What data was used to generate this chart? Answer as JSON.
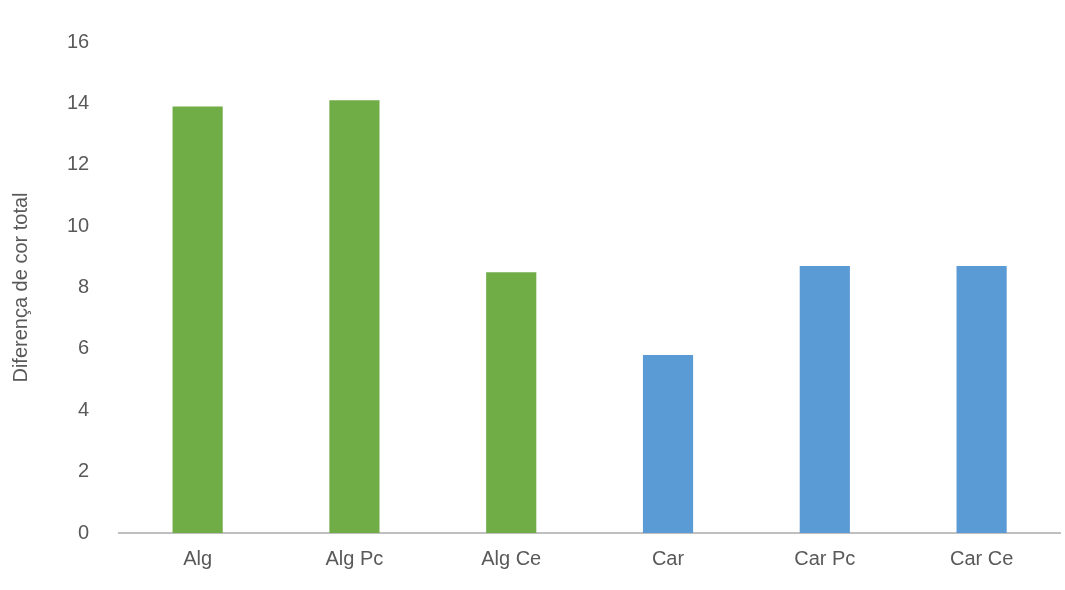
{
  "chart_data": {
    "type": "bar",
    "ylabel": "Diferença de cor total",
    "categories": [
      "Alg",
      "Alg Pc",
      "Alg Ce",
      "Car",
      "Car Pc",
      "Car Ce"
    ],
    "values": [
      13.9,
      14.1,
      8.5,
      5.8,
      8.7,
      8.7
    ],
    "colors": [
      "#70ad47",
      "#70ad47",
      "#70ad47",
      "#5b9bd5",
      "#5b9bd5",
      "#5b9bd5"
    ],
    "ylim": [
      0,
      16
    ],
    "yticks": [
      0,
      2,
      4,
      6,
      8,
      10,
      12,
      14,
      16
    ],
    "grid": false,
    "legend": false
  }
}
